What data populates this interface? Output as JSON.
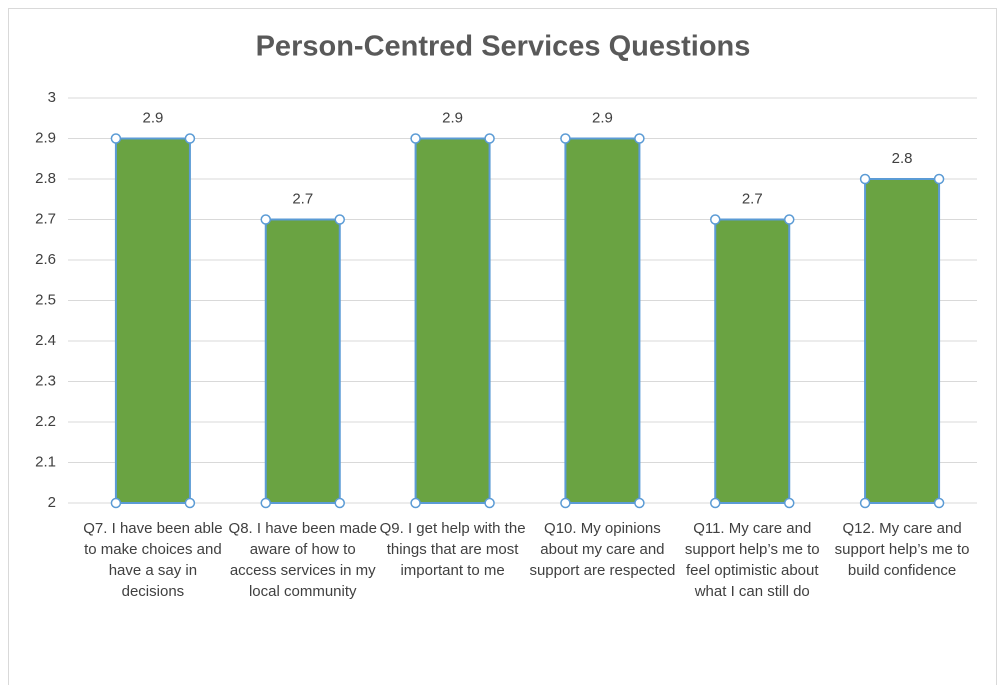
{
  "chart_data": {
    "type": "bar",
    "title": "Person-Centred Services Questions",
    "categories": [
      "Q7. I have been able to make choices and have a say in decisions",
      "Q8. I have been made aware of how to access services in my local community",
      "Q9. I get help with the things that are most important to me",
      "Q10. My opinions about my care and support are respected",
      "Q11.  My care and support help’s me to feel optimistic about what I can still do",
      "Q12. My care and support help’s me to build confidence"
    ],
    "values": [
      2.9,
      2.7,
      2.9,
      2.9,
      2.7,
      2.8
    ],
    "color": "#6aa342",
    "edge_color": "#5b9bd5",
    "ylim": [
      2,
      3
    ],
    "yticks": [
      2,
      2.1,
      2.2,
      2.3,
      2.4,
      2.5,
      2.6,
      2.7,
      2.8,
      2.9,
      3
    ],
    "grid": true
  }
}
